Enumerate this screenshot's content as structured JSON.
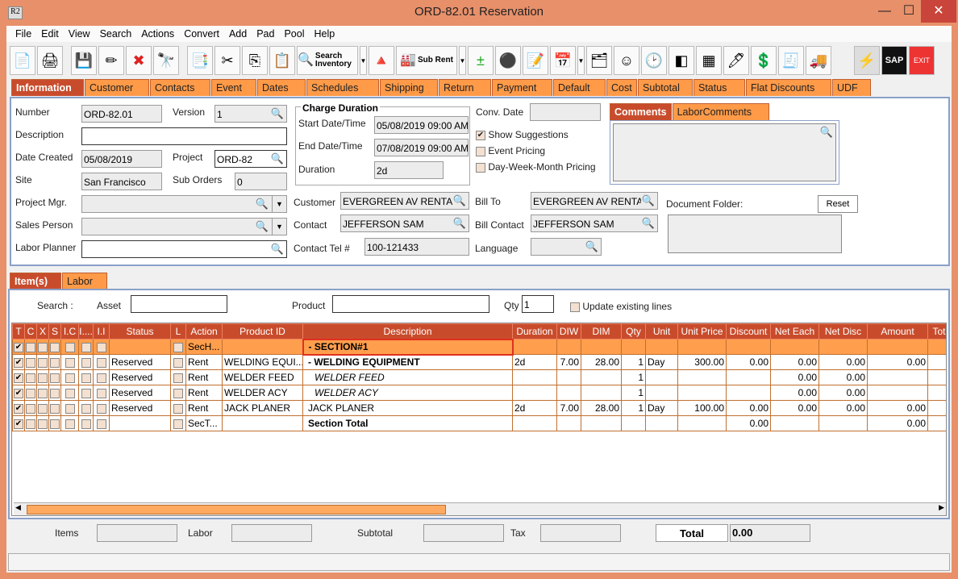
{
  "window": {
    "title": "ORD-82.01 Reservation",
    "app_icon": "R2",
    "minimize": "—",
    "maximize": "☐",
    "close": "✕"
  },
  "menu": [
    "File",
    "Edit",
    "View",
    "Search",
    "Actions",
    "Convert",
    "Add",
    "Pad",
    "Pool",
    "Help"
  ],
  "toolbar": {
    "search_inventory": "Search Inventory",
    "sub_rent": "Sub Rent",
    "sap": "SAP",
    "exit": "EXIT"
  },
  "main_tabs": [
    "Information",
    "Customer",
    "Contacts",
    "Event",
    "Dates",
    "Schedules",
    "Shipping",
    "Return",
    "Payment",
    "Default",
    "Cost",
    "Subtotal",
    "Status",
    "Flat Discounts",
    "UDF"
  ],
  "info": {
    "number_label": "Number",
    "number": "ORD-82.01",
    "version_label": "Version",
    "version": "1",
    "description_label": "Description",
    "description": "",
    "date_created_label": "Date Created",
    "date_created": "05/08/2019",
    "project_label": "Project",
    "project": "ORD-82",
    "site_label": "Site",
    "site": "San Francisco",
    "sub_orders_label": "Sub Orders",
    "sub_orders": "0",
    "project_mgr_label": "Project Mgr.",
    "sales_person_label": "Sales Person",
    "labor_planner_label": "Labor Planner",
    "charge_duration": {
      "title": "Charge Duration",
      "start_label": "Start Date/Time",
      "start": "05/08/2019 09:00 AM",
      "end_label": "End Date/Time",
      "end": "07/08/2019 09:00 AM",
      "duration_label": "Duration",
      "duration": "2d"
    },
    "conv_date_label": "Conv. Date",
    "show_suggestions": "Show Suggestions",
    "event_pricing": "Event Pricing",
    "dwm_pricing": "Day-Week-Month Pricing",
    "customer_label": "Customer",
    "customer": "EVERGREEN AV RENTALS",
    "contact_label": "Contact",
    "contact": "JEFFERSON SAM",
    "contact_tel_label": "Contact Tel #",
    "contact_tel": "100-121433",
    "bill_to_label": "Bill To",
    "bill_to": "EVERGREEN AV RENTALS",
    "bill_contact_label": "Bill Contact",
    "bill_contact": "JEFFERSON SAM",
    "language_label": "Language",
    "comment_tabs": [
      "Comments",
      "LaborComments"
    ],
    "document_folder_label": "Document Folder:",
    "reset": "Reset"
  },
  "item_tabs": [
    "Item(s)",
    "Labor"
  ],
  "search": {
    "search_label": "Search :",
    "asset_label": "Asset",
    "product_label": "Product",
    "qty_label": "Qty",
    "qty": "1",
    "update_existing": "Update existing lines"
  },
  "table": {
    "columns": [
      "T",
      "C",
      "X",
      "S",
      "I.C",
      "I....",
      "I.I",
      "Status",
      "L",
      "Action",
      "Product ID",
      "Description",
      "Duration",
      "DIW",
      "DIM",
      "Qty",
      "Unit",
      "Unit Price",
      "Discount",
      "Net Each",
      "Net Disc",
      "Amount",
      "Tot"
    ],
    "rows": [
      {
        "status": "",
        "action": "SecH...",
        "product": "",
        "desc": "-  SECTION#1",
        "duration": "",
        "diw": "",
        "dim": "",
        "qty": "",
        "unit": "",
        "price": "",
        "discount": "",
        "net_each": "",
        "net_disc": "",
        "amount": "",
        "style": "section"
      },
      {
        "status": "Reserved",
        "action": "Rent",
        "product": "WELDING EQUI...",
        "desc": "-  WELDING EQUIPMENT",
        "duration": "2d",
        "diw": "7.00",
        "dim": "28.00",
        "qty": "1",
        "unit": "Day",
        "price": "300.00",
        "discount": "0.00",
        "net_each": "0.00",
        "net_disc": "0.00",
        "amount": "0.00",
        "style": "bold"
      },
      {
        "status": "Reserved",
        "action": "Rent",
        "product": "WELDER FEED",
        "desc": "WELDER FEED",
        "duration": "",
        "diw": "",
        "dim": "",
        "qty": "1",
        "unit": "",
        "price": "",
        "discount": "",
        "net_each": "0.00",
        "net_disc": "0.00",
        "amount": "",
        "style": "italic"
      },
      {
        "status": "Reserved",
        "action": "Rent",
        "product": "WELDER ACY",
        "desc": "WELDER ACY",
        "duration": "",
        "diw": "",
        "dim": "",
        "qty": "1",
        "unit": "",
        "price": "",
        "discount": "",
        "net_each": "0.00",
        "net_disc": "0.00",
        "amount": "",
        "style": "italic"
      },
      {
        "status": "Reserved",
        "action": "Rent",
        "product": "JACK PLANER",
        "desc": "JACK PLANER",
        "duration": "2d",
        "diw": "7.00",
        "dim": "28.00",
        "qty": "1",
        "unit": "Day",
        "price": "100.00",
        "discount": "0.00",
        "net_each": "0.00",
        "net_disc": "0.00",
        "amount": "0.00",
        "style": "normal"
      },
      {
        "status": "",
        "action": "SecT...",
        "product": "",
        "desc": "Section Total",
        "duration": "",
        "diw": "",
        "dim": "",
        "qty": "",
        "unit": "",
        "price": "",
        "discount": "0.00",
        "net_each": "",
        "net_disc": "",
        "amount": "0.00",
        "style": "total"
      }
    ]
  },
  "footer": {
    "items_label": "Items",
    "labor_label": "Labor",
    "subtotal_label": "Subtotal",
    "tax_label": "Tax",
    "total_label": "Total",
    "total": "0.00"
  },
  "colors": {
    "accent": "#c84c2c",
    "tab": "#ff9a48",
    "frame": "#e8906a"
  }
}
